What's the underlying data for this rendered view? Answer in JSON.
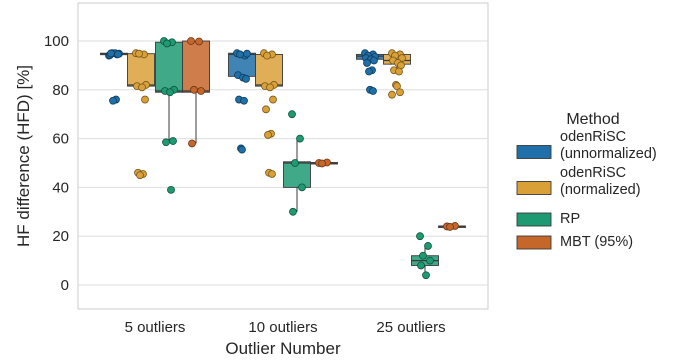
{
  "chart_data": {
    "type": "box",
    "xlabel": "Outlier Number",
    "ylabel": "HF difference (HFD) [%]",
    "categories": [
      "5 outliers",
      "10 outliers",
      "25 outliers"
    ],
    "ylim": [
      -10,
      115
    ],
    "yticks": [
      0,
      20,
      40,
      60,
      80,
      100
    ],
    "grid": true,
    "legend": {
      "title": "Method",
      "placement": "right"
    },
    "series": [
      {
        "name": "odenRiSC\n(unnormalized)",
        "color": "#1f6fa8",
        "boxes": [
          {
            "q1": 94.6,
            "median": 94.8,
            "q3": 95.0,
            "whisker_low": 94.2,
            "whisker_high": 95.0,
            "points": [
              94,
              94.5,
              95,
              94.8,
              94.2,
              95,
              94.6,
              94.9,
              76,
              75.5
            ]
          },
          {
            "q1": 85.5,
            "median": 94.5,
            "q3": 95.0,
            "whisker_low": 84.5,
            "whisker_high": 95.0,
            "points": [
              95,
              94,
              94.5,
              94.8,
              86,
              85,
              84.5,
              76,
              75.5,
              56,
              55.5
            ]
          },
          {
            "q1": 92.5,
            "median": 93.8,
            "q3": 94.5,
            "whisker_low": 92.0,
            "whisker_high": 95.0,
            "points": [
              95,
              94.5,
              94,
              93.5,
              93,
              92.5,
              92,
              91,
              88,
              87.5,
              80,
              79.5
            ]
          }
        ]
      },
      {
        "name": "odenRiSC\n(normalized)",
        "color": "#d9a038",
        "boxes": [
          {
            "q1": 81.5,
            "median": 82.0,
            "q3": 94.8,
            "whisker_low": 81.0,
            "whisker_high": 95.0,
            "points": [
              95,
              94.5,
              94.8,
              82,
              81.5,
              81,
              76,
              46,
              45.5,
              45
            ]
          },
          {
            "q1": 81.5,
            "median": 82.0,
            "q3": 94.5,
            "whisker_low": 81.0,
            "whisker_high": 95.0,
            "points": [
              95,
              94.5,
              94,
              82,
              81.5,
              81,
              76,
              72,
              62,
              61.5,
              46,
              45.5
            ]
          },
          {
            "q1": 90.5,
            "median": 92.0,
            "q3": 94.5,
            "whisker_low": 89.0,
            "whisker_high": 95.0,
            "points": [
              95,
              94.5,
              94,
              93,
              92,
              91,
              90,
              88,
              87.5,
              82,
              81.5,
              79,
              78
            ]
          }
        ]
      },
      {
        "name": "RP",
        "color": "#1e9a73",
        "boxes": [
          {
            "q1": 79.0,
            "median": 79.5,
            "q3": 99.5,
            "whisker_low": 59.0,
            "whisker_high": 100.0,
            "points": [
              100,
              99.5,
              99,
              80,
              79.5,
              79,
              59,
              58.5,
              39
            ]
          },
          {
            "q1": 40.0,
            "median": 50.0,
            "q3": 50.5,
            "whisker_low": 30.0,
            "whisker_high": 60.0,
            "points": [
              70,
              60,
              50,
              40,
              30
            ]
          },
          {
            "q1": 8.0,
            "median": 10.0,
            "q3": 12.0,
            "whisker_low": 4.0,
            "whisker_high": 16.0,
            "points": [
              20,
              16,
              12,
              10,
              8,
              4
            ]
          }
        ]
      },
      {
        "name": "MBT (95%)",
        "color": "#c5662b",
        "boxes": [
          {
            "q1": 79.0,
            "median": 79.5,
            "q3": 100.0,
            "whisker_low": 58.0,
            "whisker_high": 100.0,
            "points": [
              100,
              99.8,
              80,
              79.5,
              58
            ]
          },
          {
            "q1": 49.8,
            "median": 50.0,
            "q3": 50.2,
            "whisker_low": 49.5,
            "whisker_high": 50.5,
            "points": [
              50,
              50.2,
              49.8
            ]
          },
          {
            "q1": 23.8,
            "median": 24.0,
            "q3": 24.2,
            "whisker_low": 23.5,
            "whisker_high": 24.5,
            "points": [
              24,
              24.2,
              23.8
            ]
          }
        ]
      }
    ]
  }
}
